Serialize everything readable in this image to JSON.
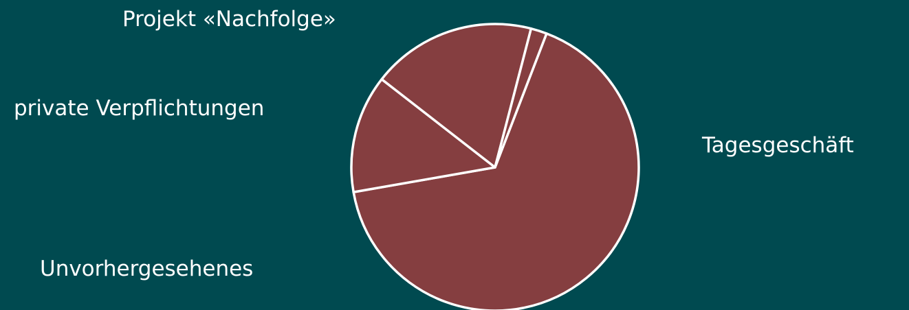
{
  "colors": {
    "background": "#004a50",
    "slice_fill": "#853e40",
    "slice_stroke": "#ffffff",
    "label_text": "#ffffff"
  },
  "chart_data": {
    "type": "pie",
    "title": "",
    "legend": "none",
    "slices": [
      {
        "label": "Tagesgeschäft",
        "value": 66.4
      },
      {
        "label": "Unvorhergesehenes",
        "value": 13.3
      },
      {
        "label": "private Verpflichtungen",
        "value": 18.5
      },
      {
        "label": "Projekt «Nachfolge»",
        "value": 1.8
      }
    ]
  }
}
